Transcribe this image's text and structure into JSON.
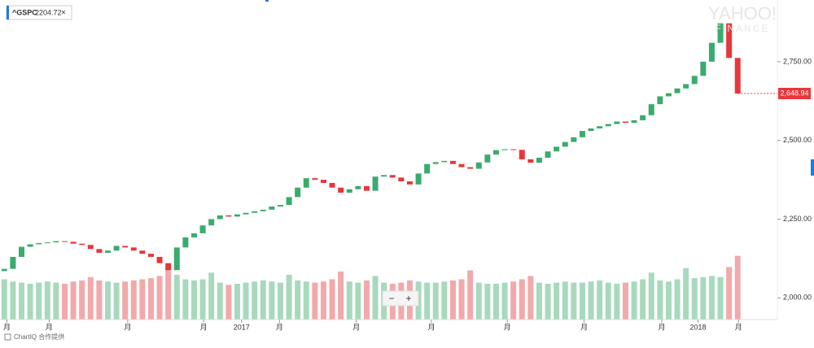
{
  "chart_data": {
    "type": "candlestick",
    "symbol": "^GSPC",
    "legend_value": "2204.72",
    "watermark": [
      "YAHOO!",
      "FINANCE"
    ],
    "footer": "ChartIQ 合作提供",
    "zoom_buttons": [
      "−",
      "+"
    ],
    "up_color": "#3aab6e",
    "down_color": "#e8363b",
    "volume_up_color": "#a8d9bd",
    "volume_down_color": "#f2a9ab",
    "open": [
      2085,
      2092,
      2130,
      2162,
      2170,
      2174,
      2176,
      2180,
      2178,
      2172,
      2168,
      2155,
      2143,
      2150,
      2165,
      2160,
      2150,
      2140,
      2130,
      2110,
      2088,
      2160,
      2192,
      2205,
      2230,
      2250,
      2262,
      2258,
      2265,
      2270,
      2275,
      2280,
      2290,
      2295,
      2320,
      2350,
      2380,
      2375,
      2365,
      2350,
      2334,
      2345,
      2355,
      2340,
      2385,
      2390,
      2382,
      2370,
      2360,
      2395,
      2425,
      2431,
      2435,
      2425,
      2415,
      2410,
      2430,
      2455,
      2469,
      2472,
      2470,
      2440,
      2429,
      2445,
      2465,
      2480,
      2495,
      2510,
      2530,
      2538,
      2545,
      2552,
      2560,
      2556,
      2564,
      2580,
      2615,
      2640,
      2650,
      2665,
      2679,
      2705,
      2750,
      2810,
      2872,
      2762
    ],
    "close": [
      2092,
      2130,
      2162,
      2170,
      2174,
      2176,
      2180,
      2178,
      2172,
      2168,
      2155,
      2143,
      2150,
      2165,
      2160,
      2150,
      2140,
      2130,
      2110,
      2088,
      2160,
      2192,
      2205,
      2230,
      2250,
      2262,
      2258,
      2265,
      2270,
      2275,
      2280,
      2290,
      2295,
      2320,
      2350,
      2380,
      2375,
      2365,
      2350,
      2334,
      2345,
      2355,
      2340,
      2385,
      2390,
      2382,
      2370,
      2360,
      2395,
      2425,
      2431,
      2435,
      2425,
      2415,
      2410,
      2430,
      2455,
      2469,
      2472,
      2470,
      2440,
      2429,
      2445,
      2465,
      2480,
      2495,
      2510,
      2530,
      2538,
      2545,
      2552,
      2560,
      2556,
      2564,
      2580,
      2615,
      2640,
      2650,
      2665,
      2679,
      2705,
      2750,
      2810,
      2872,
      2762,
      2648.94
    ],
    "volume": [
      3.6,
      3.4,
      3.3,
      3.2,
      3.3,
      3.4,
      3.3,
      3.2,
      3.4,
      3.5,
      3.8,
      3.5,
      3.4,
      3.3,
      3.4,
      3.5,
      3.6,
      3.7,
      3.9,
      4.6,
      4.0,
      3.6,
      3.5,
      3.6,
      4.2,
      3.3,
      3.1,
      3.2,
      3.3,
      3.4,
      3.5,
      3.4,
      3.3,
      4.0,
      3.5,
      3.4,
      3.3,
      3.4,
      3.6,
      4.3,
      3.4,
      3.3,
      3.5,
      3.9,
      3.3,
      3.2,
      3.3,
      3.5,
      3.4,
      3.3,
      3.3,
      3.4,
      3.5,
      3.6,
      4.4,
      3.3,
      3.2,
      3.2,
      3.3,
      3.4,
      3.6,
      3.9,
      3.3,
      3.2,
      3.3,
      3.4,
      3.3,
      3.3,
      3.4,
      3.5,
      3.3,
      3.2,
      3.3,
      3.4,
      3.6,
      4.2,
      3.5,
      3.4,
      3.6,
      4.6,
      3.7,
      3.8,
      3.9,
      3.8,
      4.7,
      5.7
    ],
    "xlim": [
      -0.5,
      89.6
    ],
    "xticks": [
      {
        "value": 0.3,
        "label": "月"
      },
      {
        "value": 5.2,
        "label": "月"
      },
      {
        "value": 14.3,
        "label": "月"
      },
      {
        "value": 23.1,
        "label": "月"
      },
      {
        "value": 27.5,
        "label": "2017"
      },
      {
        "value": 31.9,
        "label": "月"
      },
      {
        "value": 40.8,
        "label": "月"
      },
      {
        "value": 49.5,
        "label": "月"
      },
      {
        "value": 58.3,
        "label": "月"
      },
      {
        "value": 67.2,
        "label": "月"
      },
      {
        "value": 76.2,
        "label": "月"
      },
      {
        "value": 80.4,
        "label": "2018"
      },
      {
        "value": 85.1,
        "label": "月"
      }
    ],
    "ylim": [
      1931,
      2946
    ],
    "yticks": [
      {
        "value": 2000,
        "label": "2,000.00"
      },
      {
        "value": 2250,
        "label": "2,250.00"
      },
      {
        "value": 2500,
        "label": "2,500.00"
      },
      {
        "value": 2750,
        "label": "2,750.00"
      }
    ],
    "vlim": [
      0,
      8
    ],
    "last_price": {
      "value": 2648.94,
      "label": "2,648.94"
    }
  }
}
